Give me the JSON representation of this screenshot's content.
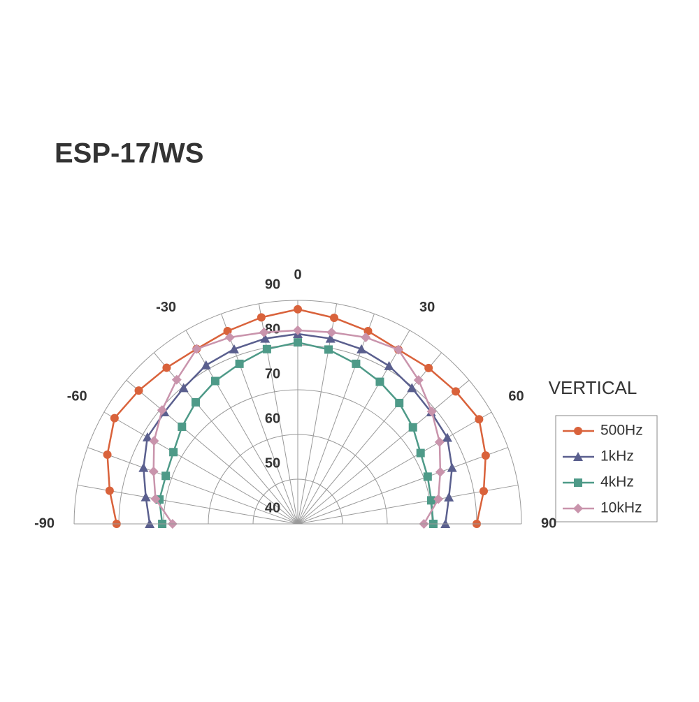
{
  "chart_data": {
    "type": "polar",
    "title": "ESP-17/WS",
    "annotation": "VERTICAL",
    "angles": [
      -90,
      -80,
      -70,
      -60,
      -50,
      -40,
      -30,
      -20,
      -10,
      0,
      10,
      20,
      30,
      40,
      50,
      60,
      70,
      80,
      90
    ],
    "angle_ticks": [
      -90,
      -60,
      -30,
      0,
      30,
      60,
      90
    ],
    "rlim": [
      40,
      90
    ],
    "rticks": [
      40,
      50,
      60,
      70,
      80,
      90
    ],
    "grid": true,
    "legend": "right",
    "series": [
      {
        "name": "500Hz",
        "color": "#d9623b",
        "marker": "circle",
        "values": [
          80.5,
          82.7,
          85.3,
          87.3,
          86.4,
          85.6,
          85.2,
          85.9,
          86.9,
          88.0,
          86.8,
          85.9,
          85.0,
          85.5,
          86.1,
          86.8,
          84.7,
          82.2,
          80.0
        ]
      },
      {
        "name": "1kHz",
        "color": "#5a5f8e",
        "marker": "triangle",
        "values": [
          73.1,
          74.5,
          76.7,
          78.8,
          78.9,
          79.7,
          81.0,
          81.6,
          82.1,
          82.5,
          82.1,
          81.6,
          80.8,
          79.7,
          78.9,
          78.6,
          76.7,
          74.3,
          73.0
        ]
      },
      {
        "name": "4kHz",
        "color": "#4e9a88",
        "marker": "square",
        "values": [
          70.3,
          71.4,
          71.4,
          72.1,
          73.8,
          75.5,
          76.9,
          78.1,
          79.7,
          80.6,
          79.6,
          78.1,
          76.7,
          75.3,
          73.6,
          71.7,
          70.9,
          70.3,
          70.3
        ]
      },
      {
        "name": "10kHz",
        "color": "#c994ac",
        "marker": "diamond",
        "values": [
          68.0,
          72.3,
          74.3,
          77.1,
          79.6,
          82.1,
          85.2,
          84.4,
          83.5,
          83.3,
          83.5,
          84.4,
          85.0,
          82.0,
          79.1,
          76.6,
          73.9,
          71.9,
          68.2
        ]
      }
    ]
  }
}
